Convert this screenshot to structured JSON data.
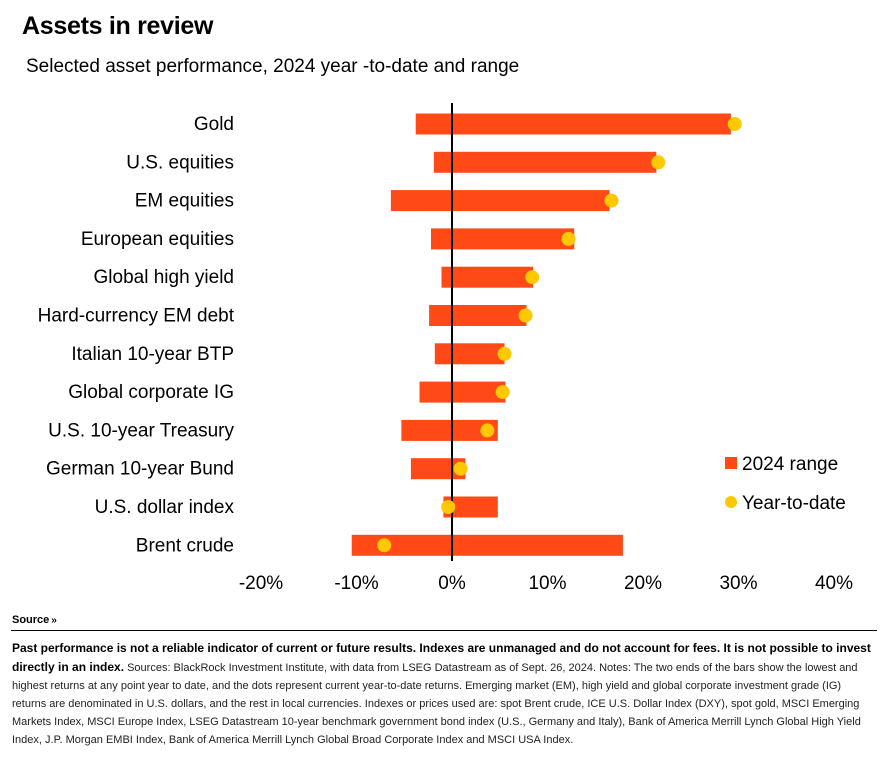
{
  "header": {
    "title": "Assets in review",
    "subtitle": "Selected asset performance, 2024 year  -to-date and range"
  },
  "colors": {
    "range_bar": "#FF4A17",
    "ytd_dot": "#FFC800",
    "zero_line": "#000000",
    "text": "#000000"
  },
  "chart_data": {
    "type": "bar",
    "orientation": "horizontal",
    "categories": [
      "Gold",
      "U.S. equities",
      "EM equities",
      "European equities",
      "Global high yield",
      "Hard-currency EM debt",
      "Italian 10-year BTP",
      "Global corporate IG",
      "U.S. 10-year Treasury",
      "German 10-year Bund",
      "U.S. dollar index",
      "Brent crude"
    ],
    "series": [
      {
        "name": "2024 range",
        "kind": "range",
        "low": [
          -3.8,
          -1.9,
          -6.4,
          -2.2,
          -1.1,
          -2.4,
          -1.8,
          -3.4,
          -5.3,
          -4.3,
          -0.9,
          -10.5
        ],
        "high": [
          29.2,
          21.4,
          16.5,
          12.8,
          8.5,
          7.8,
          5.5,
          5.6,
          4.8,
          1.4,
          4.8,
          17.9
        ]
      },
      {
        "name": "Year-to-date",
        "kind": "dot",
        "values": [
          29.6,
          21.6,
          16.7,
          12.2,
          8.4,
          7.7,
          5.5,
          5.3,
          3.7,
          0.9,
          -0.4,
          -7.1
        ]
      }
    ],
    "xlim": [
      -20,
      40
    ],
    "xticks": [
      -20,
      -10,
      0,
      10,
      20,
      30,
      40
    ],
    "xtick_labels": [
      "-20%",
      "-10%",
      "0%",
      "10%",
      "20%",
      "30%",
      "40%"
    ],
    "legend": {
      "placement": "right",
      "items": [
        "2024 range",
        "Year-to-date"
      ]
    },
    "grid": false
  },
  "source": {
    "toggle_label": "Source",
    "toggle_icon": "double-chevron-down-icon",
    "disclaimer": "Past performance is not a reliable indicator of current or future results. Indexes are unmanaged and do not account for fees. It is not possible to invest directly in an index.",
    "notes": "Sources: BlackRock Investment Institute, with data from LSEG Datastream as of Sept. 26, 2024. Notes: The two ends of the bars show the lowest and highest returns at any point year to date, and the dots represent current year-to-date returns. Emerging market (EM), high yield and global corporate investment grade (IG) returns are denominated in U.S. dollars, and the rest in local currencies. Indexes or prices used are: spot Brent crude, ICE U.S. Dollar Index (DXY), spot gold, MSCI Emerging Markets Index, MSCI Europe Index, LSEG Datastream 10-year benchmark government bond index (U.S., Germany and Italy), Bank of America Merrill Lynch Global High Yield Index, J.P. Morgan EMBI Index, Bank of America Merrill Lynch Global Broad Corporate Index and MSCI USA Index."
  }
}
